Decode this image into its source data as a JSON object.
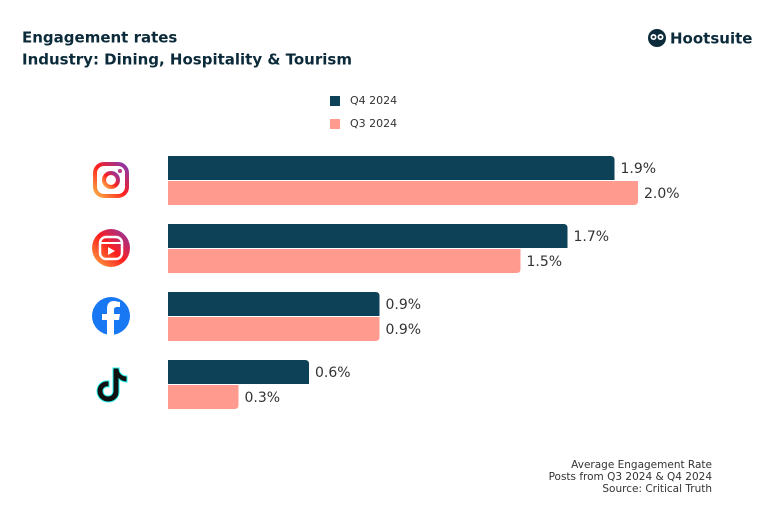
{
  "chart_data": {
    "type": "bar",
    "orientation": "horizontal",
    "title": "Engagement rates",
    "subtitle": "Industry: Dining, Hospitality & Tourism",
    "brand": "Hootsuite",
    "categories": [
      null,
      null,
      null,
      null
    ],
    "series": [
      {
        "name": "Q4 2024",
        "color": "#0d4157",
        "values": [
          1.9,
          1.7,
          0.9,
          0.6
        ],
        "value_labels": [
          "1.9%",
          "1.7%",
          "0.9%",
          "0.6%"
        ]
      },
      {
        "name": "Q3 2024",
        "color": "#ff9a8f",
        "values": [
          2.0,
          1.5,
          0.9,
          0.3
        ],
        "value_labels": [
          "2.0%",
          "1.5%",
          "0.9%",
          "0.3%"
        ]
      }
    ],
    "footer": [
      "Average Engagement Rate",
      "Posts from Q3 2024 & Q4 2024",
      "Source: Critical Truth"
    ]
  }
}
